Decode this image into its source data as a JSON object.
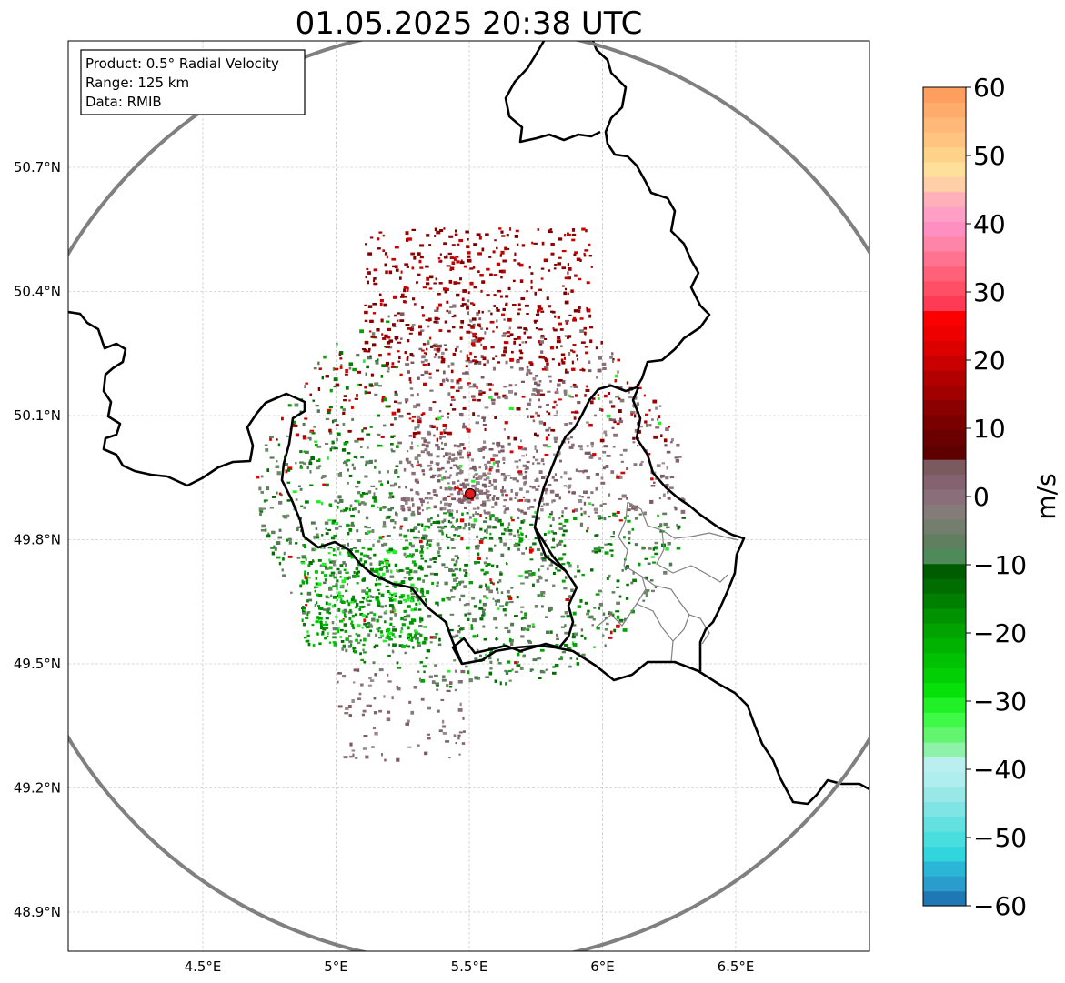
{
  "map": {
    "title": "01.05.2025 20:38 UTC",
    "info_lines": [
      "Product: 0.5° Radial Velocity",
      "Range: 125 km",
      "Data: RMIB"
    ],
    "lon_ticks": [
      {
        "value": 4.5,
        "label": "4.5°E"
      },
      {
        "value": 5.0,
        "label": "5°E"
      },
      {
        "value": 5.5,
        "label": "5.5°E"
      },
      {
        "value": 6.0,
        "label": "6°E"
      },
      {
        "value": 6.5,
        "label": "6.5°E"
      }
    ],
    "lat_ticks": [
      {
        "value": 50.7,
        "label": "50.7°N"
      },
      {
        "value": 50.4,
        "label": "50.4°N"
      },
      {
        "value": 50.1,
        "label": "50.1°N"
      },
      {
        "value": 49.8,
        "label": "49.8°N"
      },
      {
        "value": 49.5,
        "label": "49.5°N"
      },
      {
        "value": 49.2,
        "label": "49.2°N"
      },
      {
        "value": 48.9,
        "label": "48.9°N"
      }
    ],
    "extent": {
      "lon_min": 4.0,
      "lon_max": 7.0,
      "lat_min": 48.8,
      "lat_max": 51.0
    },
    "radar_site": {
      "lon": 5.505,
      "lat": 49.915
    }
  },
  "colorbar": {
    "unit": "m/s",
    "min": -60,
    "max": 60,
    "ticks": [
      {
        "value": 60,
        "label": "60"
      },
      {
        "value": 50,
        "label": "50"
      },
      {
        "value": 40,
        "label": "40"
      },
      {
        "value": 30,
        "label": "30"
      },
      {
        "value": 20,
        "label": "20"
      },
      {
        "value": 10,
        "label": "10"
      },
      {
        "value": 0,
        "label": "0"
      },
      {
        "value": -10,
        "label": "−10"
      },
      {
        "value": -20,
        "label": "−20"
      },
      {
        "value": -30,
        "label": "−30"
      },
      {
        "value": -40,
        "label": "−40"
      },
      {
        "value": -50,
        "label": "−50"
      },
      {
        "value": -60,
        "label": "−60"
      }
    ],
    "colors": [
      "#1f77b4",
      "#2a9dcc",
      "#2bb5d6",
      "#30d5dd",
      "#48dede",
      "#63e1e1",
      "#7fe4e4",
      "#98e8e8",
      "#afeeee",
      "#b9f0ef",
      "#8ef2a8",
      "#63f56f",
      "#3ef946",
      "#20f026",
      "#07e10a",
      "#02d005",
      "#01c103",
      "#00b300",
      "#00a300",
      "#009200",
      "#008000",
      "#006d00",
      "#005c00",
      "#4f8a5a",
      "#5f7f5f",
      "#737e6e",
      "#857b78",
      "#8a6e7a",
      "#856270",
      "#7b5a5f",
      "#5e0000",
      "#6b0000",
      "#7a0000",
      "#8b0000",
      "#a00000",
      "#b20000",
      "#c80000",
      "#dc0000",
      "#ee0000",
      "#fa0000",
      "#ff3a55",
      "#ff4f66",
      "#ff6178",
      "#ff7390",
      "#ff85a8",
      "#ff8fc0",
      "#ff9fc6",
      "#ffb0b8",
      "#ffd0a8",
      "#ffe09a",
      "#ffd28a",
      "#ffc480",
      "#ffb877",
      "#ffab6c",
      "#ff9f5f"
    ]
  }
}
